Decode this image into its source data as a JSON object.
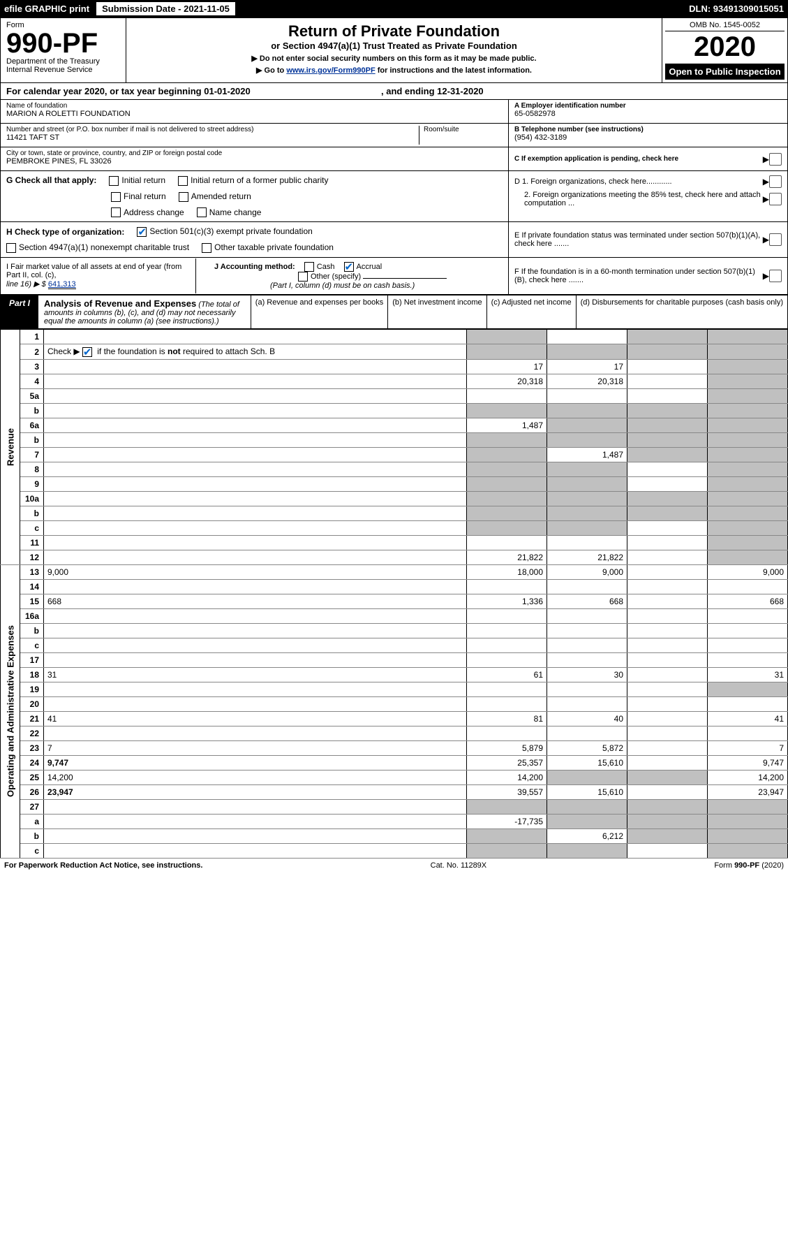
{
  "topbar": {
    "efile": "efile GRAPHIC print",
    "sub_label": "Submission Date - 2021-11-05",
    "dln": "DLN: 93491309015051"
  },
  "header": {
    "form_word": "Form",
    "form_no": "990-PF",
    "dept": "Department of the Treasury",
    "irs": "Internal Revenue Service",
    "title": "Return of Private Foundation",
    "subtitle": "or Section 4947(a)(1) Trust Treated as Private Foundation",
    "instr1": "▶ Do not enter social security numbers on this form as it may be made public.",
    "instr2_pre": "▶ Go to ",
    "instr2_link": "www.irs.gov/Form990PF",
    "instr2_post": " for instructions and the latest information.",
    "omb": "OMB No. 1545-0052",
    "year": "2020",
    "open": "Open to Public Inspection"
  },
  "cal": {
    "text_a": "For calendar year 2020, or tax year beginning ",
    "begin": "01-01-2020",
    "text_b": " , and ending ",
    "end": "12-31-2020"
  },
  "info": {
    "name_lbl": "Name of foundation",
    "name": "MARION A ROLETTI FOUNDATION",
    "addr_lbl": "Number and street (or P.O. box number if mail is not delivered to street address)",
    "room_lbl": "Room/suite",
    "addr": "11421 TAFT ST",
    "city_lbl": "City or town, state or province, country, and ZIP or foreign postal code",
    "city": "PEMBROKE PINES, FL  33026",
    "a_lbl": "A Employer identification number",
    "a_val": "65-0582978",
    "b_lbl": "B Telephone number (see instructions)",
    "b_val": "(954) 432-3189",
    "c_lbl": "C If exemption application is pending, check here"
  },
  "g": {
    "label": "G Check all that apply:",
    "o1": "Initial return",
    "o2": "Initial return of a former public charity",
    "o3": "Final return",
    "o4": "Amended return",
    "o5": "Address change",
    "o6": "Name change"
  },
  "d": {
    "d1": "D 1. Foreign organizations, check here............",
    "d2": "2. Foreign organizations meeting the 85% test, check here and attach computation ..."
  },
  "h": {
    "label": "H Check type of organization:",
    "o1": "Section 501(c)(3) exempt private foundation",
    "o2": "Section 4947(a)(1) nonexempt charitable trust",
    "o3": "Other taxable private foundation"
  },
  "e": "E  If private foundation status was terminated under section 507(b)(1)(A), check here .......",
  "i": {
    "label": "I Fair market value of all assets at end of year (from Part II, col. (c),",
    "line16": "line 16) ▶ $",
    "value": "641,313"
  },
  "j": {
    "label": "J Accounting method:",
    "cash": "Cash",
    "accrual": "Accrual",
    "other": "Other (specify)",
    "note": "(Part I, column (d) must be on cash basis.)"
  },
  "f": "F  If the foundation is in a 60-month termination under section 507(b)(1)(B), check here .......",
  "part1": {
    "label": "Part I",
    "title": "Analysis of Revenue and Expenses",
    "note": " (The total of amounts in columns (b), (c), and (d) may not necessarily equal the amounts in column (a) (see instructions).)",
    "col_a": "(a) Revenue and expenses per books",
    "col_b": "(b) Net investment income",
    "col_c": "(c) Adjusted net income",
    "col_d": "(d) Disbursements for charitable purposes (cash basis only)"
  },
  "side": {
    "revenue": "Revenue",
    "expenses": "Operating and Administrative Expenses"
  },
  "rows": [
    {
      "n": "1",
      "d": "",
      "a": "",
      "b": "",
      "c": "",
      "sa": "s",
      "sc": "s",
      "sd": "s"
    },
    {
      "n": "2",
      "d": "",
      "a": "",
      "b": "",
      "c": "",
      "sa": "s",
      "sb": "s",
      "sc": "s",
      "sd": "s",
      "blue": true
    },
    {
      "n": "3",
      "d": "",
      "a": "17",
      "b": "17",
      "c": "",
      "sd": "s"
    },
    {
      "n": "4",
      "d": "",
      "a": "20,318",
      "b": "20,318",
      "c": "",
      "sd": "s"
    },
    {
      "n": "5a",
      "d": "",
      "a": "",
      "b": "",
      "c": "",
      "sd": "s"
    },
    {
      "n": "b",
      "d": "",
      "a": "",
      "b": "",
      "c": "",
      "sa": "s",
      "sb": "s",
      "sc": "s",
      "sd": "s"
    },
    {
      "n": "6a",
      "d": "",
      "a": "1,487",
      "b": "",
      "c": "",
      "sb": "s",
      "sc": "s",
      "sd": "s"
    },
    {
      "n": "b",
      "d": "",
      "a": "",
      "b": "",
      "c": "",
      "sa": "s",
      "sb": "s",
      "sc": "s",
      "sd": "s"
    },
    {
      "n": "7",
      "d": "",
      "a": "",
      "b": "1,487",
      "c": "",
      "sa": "s",
      "sc": "s",
      "sd": "s"
    },
    {
      "n": "8",
      "d": "",
      "a": "",
      "b": "",
      "c": "",
      "sa": "s",
      "sb": "s",
      "sd": "s"
    },
    {
      "n": "9",
      "d": "",
      "a": "",
      "b": "",
      "c": "",
      "sa": "s",
      "sb": "s",
      "sd": "s"
    },
    {
      "n": "10a",
      "d": "",
      "a": "",
      "b": "",
      "c": "",
      "sa": "s",
      "sb": "s",
      "sc": "s",
      "sd": "s"
    },
    {
      "n": "b",
      "d": "",
      "a": "",
      "b": "",
      "c": "",
      "sa": "s",
      "sb": "s",
      "sc": "s",
      "sd": "s"
    },
    {
      "n": "c",
      "d": "",
      "a": "",
      "b": "",
      "c": "",
      "sa": "s",
      "sb": "s",
      "sd": "s"
    },
    {
      "n": "11",
      "d": "",
      "a": "",
      "b": "",
      "c": "",
      "sd": "s"
    },
    {
      "n": "12",
      "d": "",
      "a": "21,822",
      "b": "21,822",
      "c": "",
      "bold": true,
      "sd": "s"
    },
    {
      "n": "13",
      "d": "9,000",
      "a": "18,000",
      "b": "9,000",
      "c": ""
    },
    {
      "n": "14",
      "d": "",
      "a": "",
      "b": "",
      "c": ""
    },
    {
      "n": "15",
      "d": "668",
      "a": "1,336",
      "b": "668",
      "c": ""
    },
    {
      "n": "16a",
      "d": "",
      "a": "",
      "b": "",
      "c": ""
    },
    {
      "n": "b",
      "d": "",
      "a": "",
      "b": "",
      "c": ""
    },
    {
      "n": "c",
      "d": "",
      "a": "",
      "b": "",
      "c": ""
    },
    {
      "n": "17",
      "d": "",
      "a": "",
      "b": "",
      "c": ""
    },
    {
      "n": "18",
      "d": "31",
      "a": "61",
      "b": "30",
      "c": ""
    },
    {
      "n": "19",
      "d": "",
      "a": "",
      "b": "",
      "c": "",
      "sd": "s"
    },
    {
      "n": "20",
      "d": "",
      "a": "",
      "b": "",
      "c": ""
    },
    {
      "n": "21",
      "d": "41",
      "a": "81",
      "b": "40",
      "c": ""
    },
    {
      "n": "22",
      "d": "",
      "a": "",
      "b": "",
      "c": ""
    },
    {
      "n": "23",
      "d": "7",
      "a": "5,879",
      "b": "5,872",
      "c": ""
    },
    {
      "n": "24",
      "d": "9,747",
      "a": "25,357",
      "b": "15,610",
      "c": "",
      "bold": true
    },
    {
      "n": "25",
      "d": "14,200",
      "a": "14,200",
      "b": "",
      "c": "",
      "sb": "s",
      "sc": "s"
    },
    {
      "n": "26",
      "d": "23,947",
      "a": "39,557",
      "b": "15,610",
      "c": "",
      "bold": true
    },
    {
      "n": "27",
      "d": "",
      "a": "",
      "b": "",
      "c": "",
      "sa": "s",
      "sb": "s",
      "sc": "s",
      "sd": "s"
    },
    {
      "n": "a",
      "d": "",
      "a": "-17,735",
      "b": "",
      "c": "",
      "bold": true,
      "sb": "s",
      "sc": "s",
      "sd": "s"
    },
    {
      "n": "b",
      "d": "",
      "a": "",
      "b": "6,212",
      "c": "",
      "bold": true,
      "sa": "s",
      "sc": "s",
      "sd": "s"
    },
    {
      "n": "c",
      "d": "",
      "a": "",
      "b": "",
      "c": "",
      "bold": true,
      "sa": "s",
      "sb": "s",
      "sd": "s"
    }
  ],
  "foot": {
    "left": "For Paperwork Reduction Act Notice, see instructions.",
    "mid": "Cat. No. 11289X",
    "right": "Form 990-PF (2020)"
  },
  "colors": {
    "black": "#000000",
    "shade": "#c0c0c0",
    "link": "#003399",
    "check": "#0066cc"
  }
}
